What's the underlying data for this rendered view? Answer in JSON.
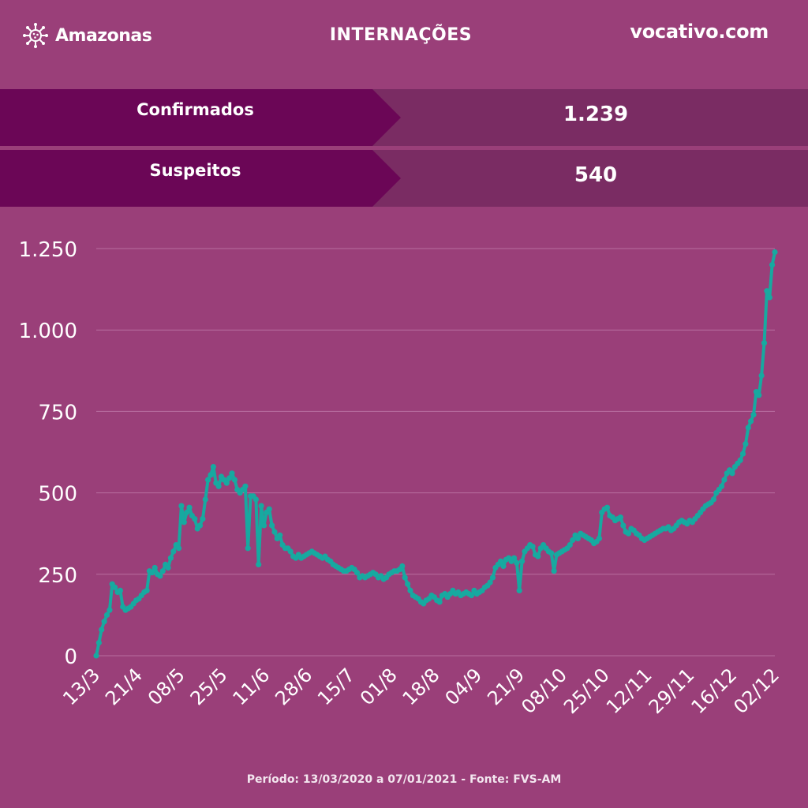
{
  "header": {
    "brand": "Amazonas",
    "brand_icon": "virus-icon",
    "title": "INTERNAÇÕES",
    "site": "vocativo.com"
  },
  "stats": [
    {
      "label": "Confirmados",
      "value": "1.239"
    },
    {
      "label": "Suspeitos",
      "value": "540"
    }
  ],
  "colors": {
    "background": "#9a3f79",
    "row_bg": "#7a2c63",
    "label_bg": "#6b0656",
    "line": "#17a9a0",
    "grid": "#b86ea0"
  },
  "chart_data": {
    "type": "line",
    "title": "",
    "xlabel": "",
    "ylabel": "",
    "ylim": [
      0,
      1250
    ],
    "yticks": [
      0,
      250,
      500,
      750,
      1000,
      1250
    ],
    "ytick_labels": [
      "0",
      "250",
      "500",
      "750",
      "1.000",
      "1.250"
    ],
    "xtick_labels": [
      "13/3",
      "21/4",
      "08/5",
      "25/5",
      "11/6",
      "28/6",
      "15/7",
      "01/8",
      "18/8",
      "04/9",
      "21/9",
      "08/10",
      "25/10",
      "12/11",
      "29/11",
      "16/12",
      "02/12"
    ],
    "grid": true,
    "series": [
      {
        "values": [
          0,
          40,
          80,
          105,
          125,
          140,
          220,
          210,
          195,
          200,
          150,
          140,
          145,
          150,
          160,
          170,
          175,
          185,
          195,
          200,
          260,
          255,
          270,
          250,
          245,
          260,
          280,
          270,
          300,
          320,
          340,
          330,
          460,
          410,
          440,
          455,
          430,
          420,
          390,
          400,
          420,
          480,
          540,
          555,
          580,
          530,
          520,
          550,
          540,
          530,
          545,
          560,
          540,
          510,
          500,
          510,
          520,
          330,
          490,
          490,
          480,
          280,
          460,
          400,
          440,
          450,
          400,
          380,
          360,
          370,
          340,
          330,
          330,
          320,
          305,
          300,
          310,
          300,
          305,
          310,
          315,
          320,
          315,
          310,
          305,
          300,
          305,
          295,
          290,
          280,
          275,
          270,
          265,
          260,
          260,
          265,
          270,
          265,
          255,
          240,
          245,
          240,
          245,
          250,
          255,
          250,
          240,
          245,
          235,
          240,
          250,
          255,
          260,
          260,
          265,
          275,
          240,
          220,
          200,
          185,
          180,
          175,
          165,
          160,
          170,
          175,
          185,
          180,
          170,
          165,
          185,
          190,
          180,
          190,
          200,
          190,
          195,
          185,
          190,
          195,
          190,
          185,
          200,
          190,
          195,
          200,
          210,
          215,
          225,
          240,
          270,
          280,
          290,
          275,
          295,
          300,
          290,
          300,
          285,
          200,
          290,
          320,
          330,
          340,
          335,
          310,
          305,
          330,
          340,
          330,
          320,
          315,
          260,
          310,
          315,
          320,
          325,
          330,
          340,
          355,
          370,
          360,
          375,
          370,
          365,
          360,
          355,
          345,
          350,
          360,
          440,
          450,
          455,
          430,
          425,
          415,
          420,
          425,
          400,
          380,
          375,
          390,
          385,
          375,
          370,
          360,
          355,
          360,
          365,
          370,
          375,
          380,
          385,
          390,
          390,
          395,
          385,
          390,
          400,
          410,
          415,
          410,
          405,
          415,
          410,
          420,
          430,
          440,
          450,
          460,
          465,
          470,
          480,
          500,
          510,
          520,
          540,
          560,
          570,
          560,
          580,
          590,
          600,
          620,
          650,
          700,
          720,
          740,
          810,
          800,
          860,
          960,
          1120,
          1100,
          1200,
          1239
        ]
      }
    ]
  },
  "footer": "Período: 13/03/2020 a 07/01/2021 - Fonte: FVS-AM"
}
